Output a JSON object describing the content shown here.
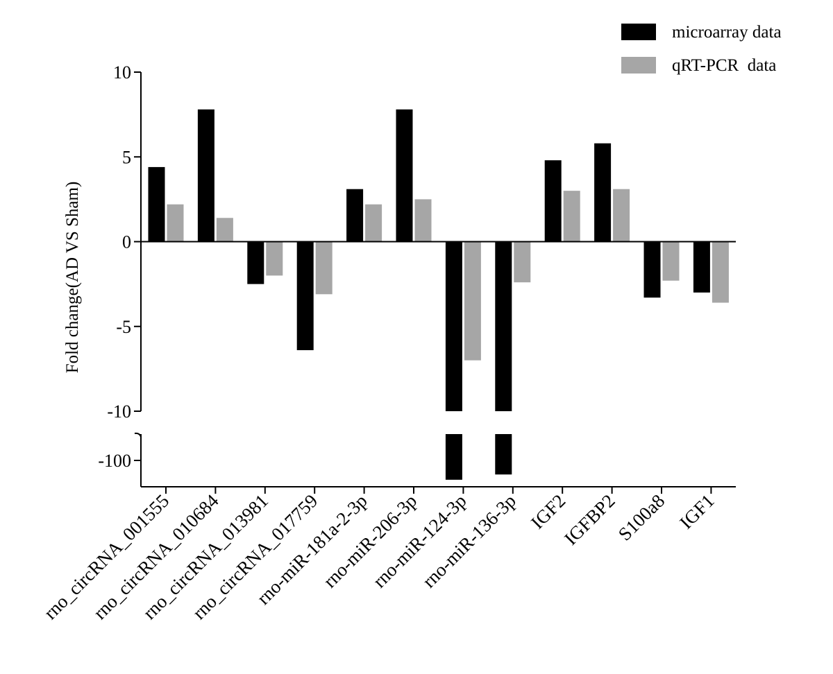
{
  "chart_data": {
    "type": "bar",
    "title": "",
    "xlabel": "",
    "ylabel": "Fold change(AD VS Sham)",
    "categories": [
      "rno_circRNA_001555",
      "rno_circRNA_010684",
      "rno_circRNA_013981",
      "rno_circRNA_017759",
      "rno-miR-181a-2-3p",
      "rno-miR-206-3p",
      "rno-miR-124-3p",
      "rno-miR-136-3p",
      "IGF2",
      "IGFBP2",
      "S100a8",
      "IGF1"
    ],
    "series": [
      {
        "name": "microarray data",
        "color": "#000000",
        "values": [
          4.4,
          7.8,
          -2.5,
          -6.4,
          3.1,
          7.8,
          -111,
          -108,
          4.8,
          5.8,
          -3.3,
          -3.0
        ]
      },
      {
        "name": "qRT-PCR  data",
        "color": "#a6a6a6",
        "values": [
          2.2,
          1.4,
          -2.0,
          -3.1,
          2.2,
          2.5,
          -7.0,
          -2.4,
          3.0,
          3.1,
          -2.3,
          -3.6
        ]
      }
    ],
    "ylim_upper": [
      -10,
      10
    ],
    "ylim_lower_segment": [
      -115,
      -85
    ],
    "yticks": [
      "10",
      "5",
      "0",
      "-5",
      "-10",
      "-100"
    ],
    "broken_y_axis": true,
    "grid": false,
    "legend_position": "top-right"
  }
}
